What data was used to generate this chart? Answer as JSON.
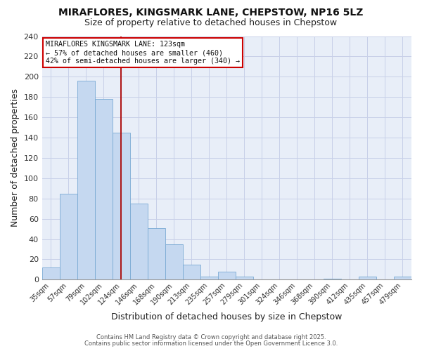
{
  "title_line1": "MIRAFLORES, KINGSMARK LANE, CHEPSTOW, NP16 5LZ",
  "title_line2": "Size of property relative to detached houses in Chepstow",
  "xlabel": "Distribution of detached houses by size in Chepstow",
  "ylabel": "Number of detached properties",
  "categories": [
    "35sqm",
    "57sqm",
    "79sqm",
    "102sqm",
    "124sqm",
    "146sqm",
    "168sqm",
    "190sqm",
    "213sqm",
    "235sqm",
    "257sqm",
    "279sqm",
    "301sqm",
    "324sqm",
    "346sqm",
    "368sqm",
    "390sqm",
    "412sqm",
    "435sqm",
    "457sqm",
    "479sqm"
  ],
  "values": [
    12,
    85,
    196,
    178,
    145,
    75,
    51,
    35,
    15,
    3,
    8,
    3,
    0,
    0,
    0,
    0,
    1,
    0,
    3,
    0,
    3
  ],
  "bar_color": "#c5d8f0",
  "bar_edge_color": "#7aaad4",
  "marker_index": 4,
  "marker_color": "#aa0000",
  "annotation_title": "MIRAFLORES KINGSMARK LANE: 123sqm",
  "annotation_line1": "← 57% of detached houses are smaller (460)",
  "annotation_line2": "42% of semi-detached houses are larger (340) →",
  "annotation_box_facecolor": "#ffffff",
  "annotation_box_edgecolor": "#cc0000",
  "fig_facecolor": "#ffffff",
  "axes_facecolor": "#e8eef8",
  "grid_color": "#c8d0e8",
  "footer1": "Contains HM Land Registry data © Crown copyright and database right 2025.",
  "footer2": "Contains public sector information licensed under the Open Government Licence 3.0.",
  "ylim_max": 240,
  "yticks": [
    0,
    20,
    40,
    60,
    80,
    100,
    120,
    140,
    160,
    180,
    200,
    220,
    240
  ]
}
